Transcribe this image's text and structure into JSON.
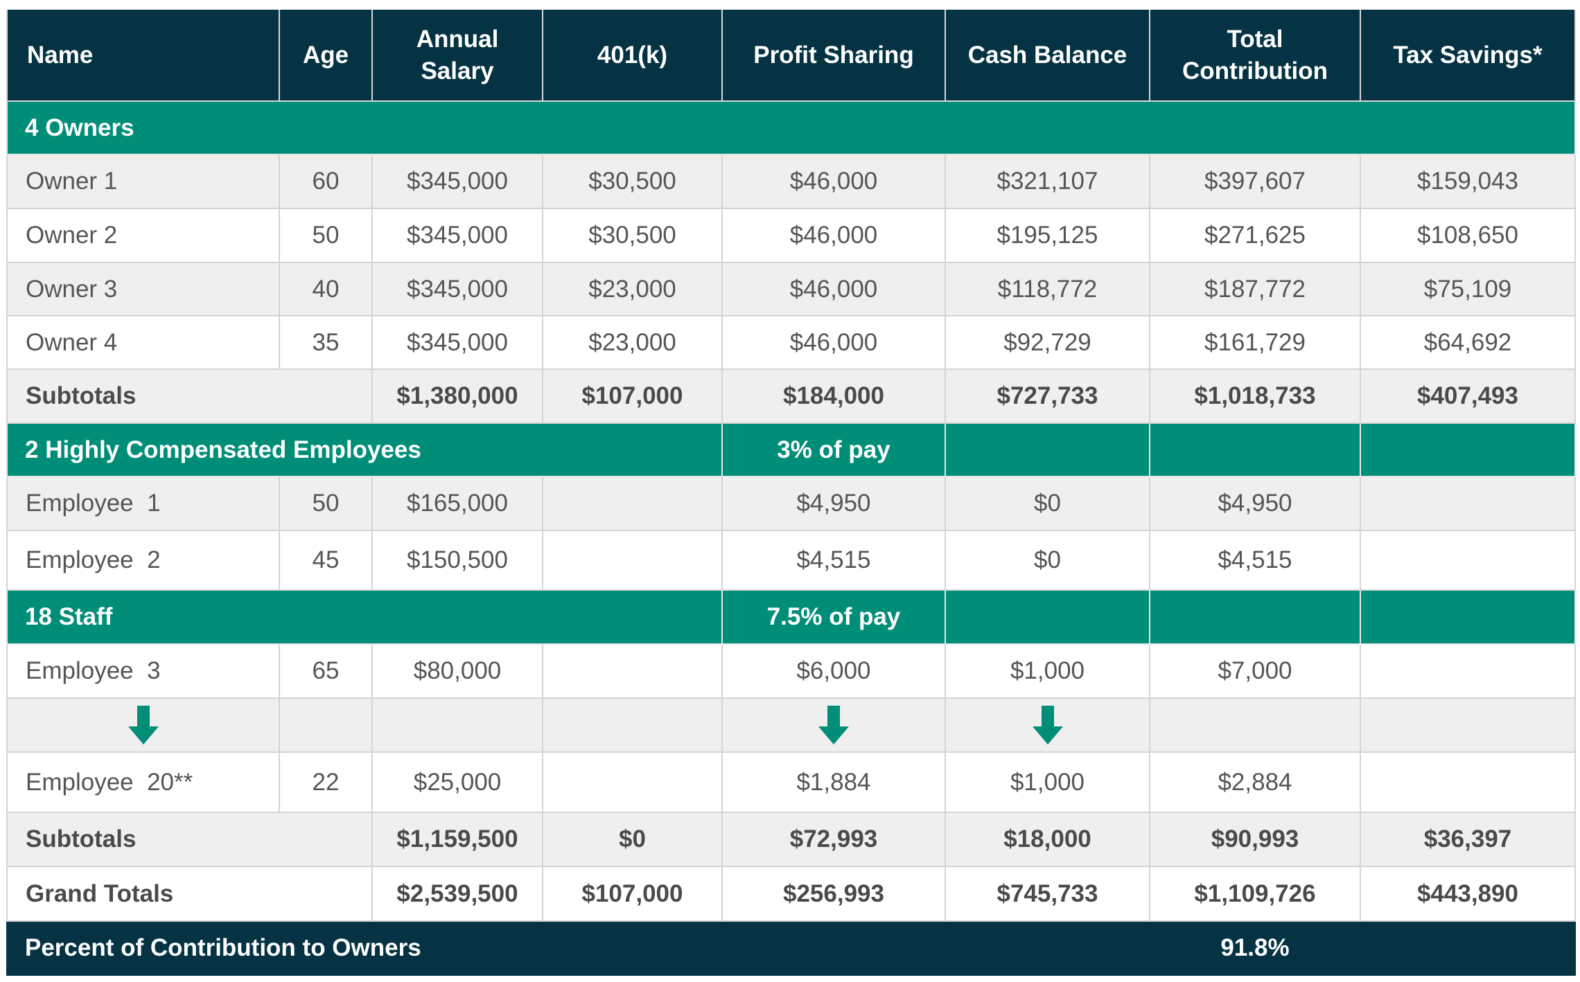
{
  "columns": [
    "Name",
    "Age",
    "Annual Salary",
    "401(k)",
    "Profit Sharing",
    "Cash Balance",
    "Total Contribution",
    "Tax Savings*"
  ],
  "colors": {
    "header": "#053343",
    "group": "#008e78",
    "alt_row": "#efefef",
    "arrow": "#008e78"
  },
  "owners_group": {
    "label": "4 Owners"
  },
  "owners": [
    {
      "name": "Owner 1",
      "age": "60",
      "salary": "$345,000",
      "k401": "$30,500",
      "profit": "$46,000",
      "cash": "$321,107",
      "total": "$397,607",
      "tax": "$159,043"
    },
    {
      "name": "Owner 2",
      "age": "50",
      "salary": "$345,000",
      "k401": "$30,500",
      "profit": "$46,000",
      "cash": "$195,125",
      "total": "$271,625",
      "tax": "$108,650"
    },
    {
      "name": "Owner 3",
      "age": "40",
      "salary": "$345,000",
      "k401": "$23,000",
      "profit": "$46,000",
      "cash": "$118,772",
      "total": "$187,772",
      "tax": "$75,109"
    },
    {
      "name": "Owner 4",
      "age": "35",
      "salary": "$345,000",
      "k401": "$23,000",
      "profit": "$46,000",
      "cash": "$92,729",
      "total": "$161,729",
      "tax": "$64,692"
    }
  ],
  "owners_subtotal": {
    "label": "Subtotals",
    "salary": "$1,380,000",
    "k401": "$107,000",
    "profit": "$184,000",
    "cash": "$727,733",
    "total": "$1,018,733",
    "tax": "$407,493"
  },
  "hce_group": {
    "label": "2 Highly Compensated Employees",
    "profit_note": "3% of pay"
  },
  "hce": [
    {
      "name": "Employee  1",
      "age": "50",
      "salary": "$165,000",
      "profit": "$4,950",
      "cash": "$0",
      "total": "$4,950"
    },
    {
      "name": "Employee  2",
      "age": "45",
      "salary": "$150,500",
      "profit": "$4,515",
      "cash": "$0",
      "total": "$4,515"
    }
  ],
  "staff_group": {
    "label": "18 Staff",
    "profit_note": "7.5% of pay"
  },
  "staff_first": {
    "name": "Employee  3",
    "age": "65",
    "salary": "$80,000",
    "profit": "$6,000",
    "cash": "$1,000",
    "total": "$7,000"
  },
  "arrows": {
    "icon": "arrow-down"
  },
  "staff_last": {
    "name": "Employee  20**",
    "age": "22",
    "salary": "$25,000",
    "profit": "$1,884",
    "cash": "$1,000",
    "total": "$2,884"
  },
  "staff_subtotal": {
    "label": "Subtotals",
    "salary": "$1,159,500",
    "k401": "$0",
    "profit": "$72,993",
    "cash": "$18,000",
    "total": "$90,993",
    "tax": "$36,397"
  },
  "grand_totals": {
    "label": "Grand Totals",
    "salary": "$2,539,500",
    "k401": "$107,000",
    "profit": "$256,993",
    "cash": "$745,733",
    "total": "$1,109,726",
    "tax": "$443,890"
  },
  "percent_row": {
    "label": "Percent of Contribution to Owners",
    "value": "91.8%"
  }
}
